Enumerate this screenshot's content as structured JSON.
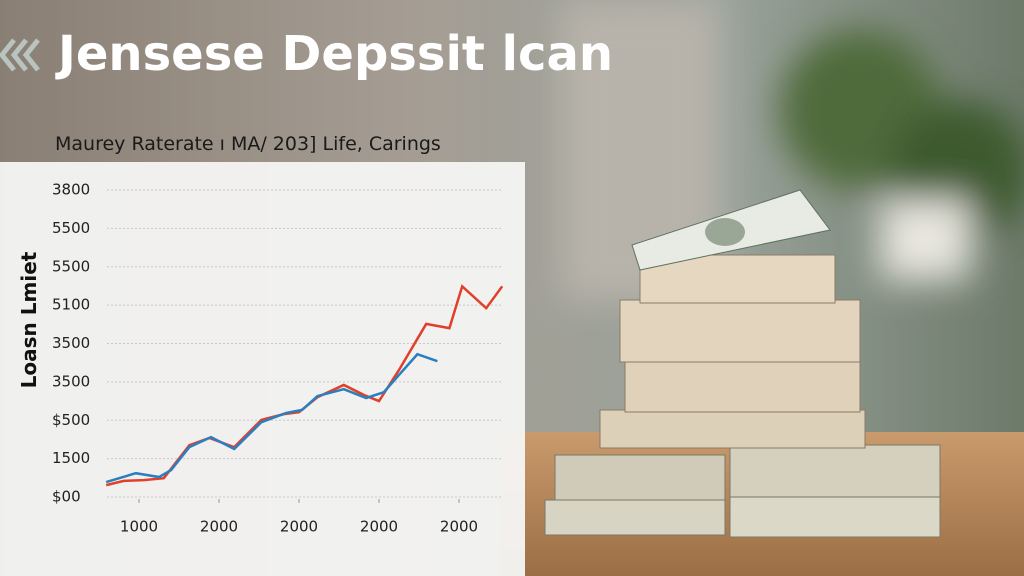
{
  "title": "Jensese Depssit lcan",
  "chart_data": {
    "type": "line",
    "subtitle": "Maurey Raterate ı MA/ 203] Life, Carings",
    "ylabel": "Loasn Lmiet",
    "xlim": [
      0.6,
      5.55
    ],
    "xticks": [
      {
        "value": 1,
        "label": "1000"
      },
      {
        "value": 2,
        "label": "2000"
      },
      {
        "value": 3,
        "label": "2000"
      },
      {
        "value": 4,
        "label": "2000"
      },
      {
        "value": 5,
        "label": "2000"
      }
    ],
    "ylim": [
      0,
      8
    ],
    "yticks": [
      {
        "value": 0,
        "label": "$00"
      },
      {
        "value": 1,
        "label": "1500"
      },
      {
        "value": 2,
        "label": "$500"
      },
      {
        "value": 3,
        "label": "3500"
      },
      {
        "value": 4,
        "label": "3500"
      },
      {
        "value": 5,
        "label": "5100"
      },
      {
        "value": 6,
        "label": "5500"
      },
      {
        "value": 7,
        "label": "5500"
      },
      {
        "value": 8,
        "label": "3800"
      }
    ],
    "grid": true,
    "series": [
      {
        "color": "#e0402a",
        "x": [
          0.59,
          0.81,
          1.06,
          1.31,
          1.63,
          1.88,
          2.19,
          2.53,
          2.81,
          3.0,
          3.23,
          3.56,
          3.81,
          4.0,
          4.25,
          4.59,
          4.88,
          5.04,
          5.34,
          5.54
        ],
        "values": [
          0.31,
          0.42,
          0.44,
          0.49,
          1.35,
          1.54,
          1.3,
          2.01,
          2.16,
          2.21,
          2.6,
          2.92,
          2.66,
          2.5,
          3.31,
          4.51,
          4.4,
          5.49,
          4.92,
          5.49
        ]
      },
      {
        "color": "#2a7fc0",
        "x": [
          0.59,
          0.96,
          1.25,
          1.4,
          1.63,
          1.9,
          2.19,
          2.53,
          2.84,
          3.04,
          3.23,
          3.56,
          3.84,
          4.06,
          4.25,
          4.48,
          4.73
        ],
        "values": [
          0.39,
          0.62,
          0.52,
          0.7,
          1.3,
          1.56,
          1.25,
          1.95,
          2.19,
          2.27,
          2.63,
          2.81,
          2.58,
          2.73,
          3.18,
          3.72,
          3.54
        ]
      }
    ]
  }
}
